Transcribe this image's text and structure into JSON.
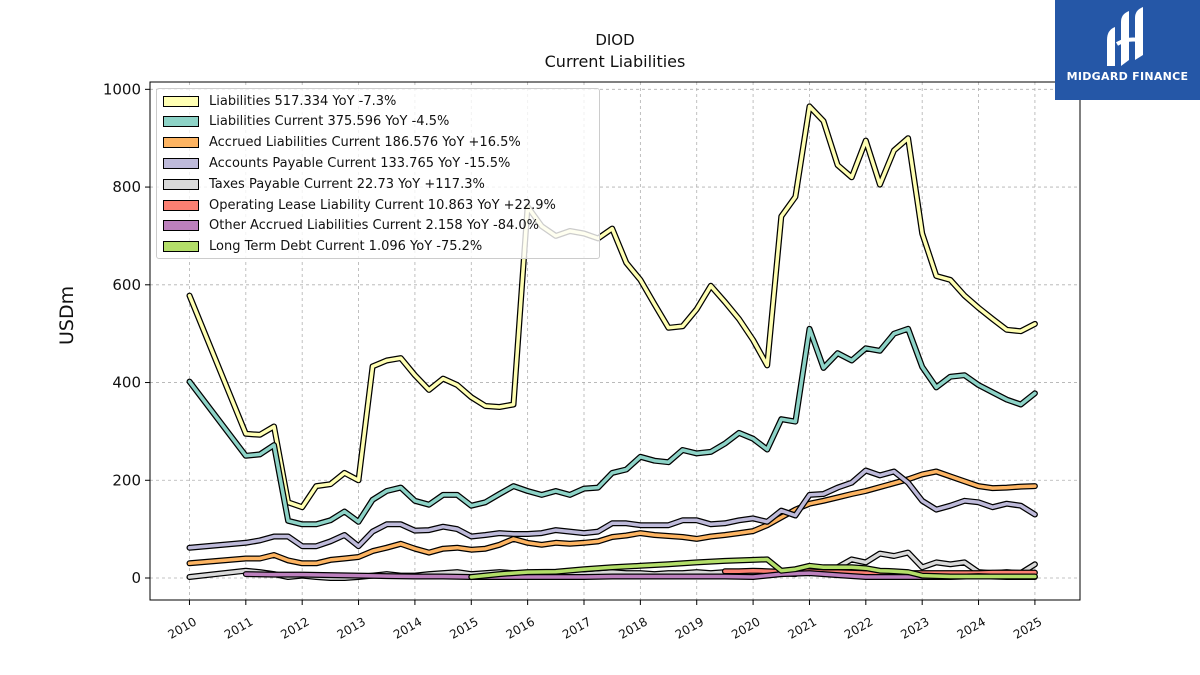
{
  "header": {
    "ticker": "DIOD",
    "subtitle": "Current  Liabilities"
  },
  "brand": {
    "name": "MIDGARD FINANCE",
    "color": "#2557a7"
  },
  "chart_data": {
    "type": "line",
    "ylabel": "USDm",
    "xlabel": "",
    "ylim": [
      -45,
      1015
    ],
    "xlim": [
      2009.3,
      2025.8
    ],
    "yticks": [
      0,
      200,
      400,
      600,
      800,
      1000
    ],
    "xticks": [
      "2010",
      "2011",
      "2012",
      "2013",
      "2014",
      "2015",
      "2016",
      "2017",
      "2018",
      "2019",
      "2020",
      "2021",
      "2022",
      "2023",
      "2024",
      "2025"
    ],
    "grid": true,
    "legend_position": "top-left",
    "series": [
      {
        "name": "Liabilities",
        "legend": "Liabilities  517.334 YoY -7.3%",
        "color": "#ffffb3",
        "x": [
          2010,
          2011,
          2011.25,
          2011.5,
          2011.75,
          2012,
          2012.25,
          2012.5,
          2012.75,
          2013,
          2013.25,
          2013.5,
          2013.75,
          2014,
          2014.25,
          2014.5,
          2014.75,
          2015,
          2015.25,
          2015.5,
          2015.75,
          2016,
          2016.25,
          2016.5,
          2016.75,
          2017,
          2017.25,
          2017.5,
          2017.75,
          2018,
          2018.25,
          2018.5,
          2018.75,
          2019,
          2019.25,
          2019.5,
          2019.75,
          2020,
          2020.25,
          2020.5,
          2020.75,
          2021,
          2021.25,
          2021.5,
          2021.75,
          2022,
          2022.25,
          2022.5,
          2022.75,
          2023,
          2023.25,
          2023.5,
          2023.75,
          2024,
          2024.25,
          2024.5,
          2024.75,
          2025
        ],
        "y": [
          578,
          295,
          293,
          310,
          155,
          145,
          188,
          192,
          215,
          200,
          433,
          445,
          450,
          415,
          385,
          408,
          395,
          370,
          352,
          350,
          355,
          760,
          720,
          700,
          710,
          705,
          695,
          715,
          645,
          610,
          560,
          512,
          515,
          550,
          598,
          565,
          530,
          487,
          435,
          740,
          780,
          965,
          935,
          845,
          820,
          895,
          805,
          875,
          900,
          705,
          618,
          610,
          578,
          553,
          530,
          508,
          505,
          520
        ]
      },
      {
        "name": "Liabilities Current",
        "legend": "Liabilities Current  375.596 YoY -4.5%",
        "color": "#8dd3c7",
        "x": [
          2010,
          2011,
          2011.25,
          2011.5,
          2011.75,
          2012,
          2012.25,
          2012.5,
          2012.75,
          2013,
          2013.25,
          2013.5,
          2013.75,
          2014,
          2014.25,
          2014.5,
          2014.75,
          2015,
          2015.25,
          2015.5,
          2015.75,
          2016,
          2016.25,
          2016.5,
          2016.75,
          2017,
          2017.25,
          2017.5,
          2017.75,
          2018,
          2018.25,
          2018.5,
          2018.75,
          2019,
          2019.25,
          2019.5,
          2019.75,
          2020,
          2020.25,
          2020.5,
          2020.75,
          2021,
          2021.25,
          2021.5,
          2021.75,
          2022,
          2022.25,
          2022.5,
          2022.75,
          2023,
          2023.25,
          2023.5,
          2023.75,
          2024,
          2024.25,
          2024.5,
          2024.75,
          2025
        ],
        "y": [
          402,
          250,
          253,
          272,
          117,
          110,
          110,
          118,
          136,
          115,
          160,
          178,
          185,
          158,
          150,
          170,
          170,
          148,
          155,
          172,
          188,
          178,
          170,
          178,
          170,
          183,
          185,
          215,
          222,
          248,
          240,
          237,
          262,
          255,
          258,
          275,
          297,
          285,
          263,
          325,
          320,
          510,
          430,
          460,
          445,
          470,
          465,
          500,
          510,
          432,
          390,
          412,
          415,
          395,
          380,
          365,
          355,
          378
        ]
      },
      {
        "name": "Accrued Liabilities Current",
        "legend": "Accrued Liabilities Current  186.576 YoY +16.5%",
        "color": "#fdb462",
        "x": [
          2010,
          2011,
          2011.25,
          2011.5,
          2011.75,
          2012,
          2012.25,
          2012.5,
          2012.75,
          2013,
          2013.25,
          2013.5,
          2013.75,
          2014,
          2014.25,
          2014.5,
          2014.75,
          2015,
          2015.25,
          2015.5,
          2015.75,
          2016,
          2016.25,
          2016.5,
          2016.75,
          2017,
          2017.25,
          2017.5,
          2017.75,
          2018,
          2018.25,
          2018.5,
          2018.75,
          2019,
          2019.25,
          2019.5,
          2019.75,
          2020,
          2020.25,
          2020.5,
          2020.75,
          2021,
          2021.25,
          2021.5,
          2021.75,
          2022,
          2022.25,
          2022.5,
          2022.75,
          2023,
          2023.25,
          2023.5,
          2023.75,
          2024,
          2024.25,
          2024.5,
          2024.75,
          2025
        ],
        "y": [
          30,
          40,
          40,
          47,
          36,
          30,
          30,
          37,
          40,
          43,
          55,
          62,
          70,
          60,
          52,
          60,
          62,
          58,
          60,
          68,
          80,
          72,
          68,
          72,
          70,
          72,
          75,
          84,
          87,
          92,
          88,
          86,
          84,
          80,
          85,
          88,
          92,
          96,
          108,
          124,
          140,
          152,
          158,
          165,
          172,
          178,
          186,
          194,
          202,
          212,
          218,
          208,
          198,
          188,
          184,
          185,
          187,
          188
        ]
      },
      {
        "name": "Accounts Payable Current",
        "legend": "Accounts Payable Current  133.765 YoY -15.5%",
        "color": "#bebada",
        "x": [
          2010,
          2011,
          2011.25,
          2011.5,
          2011.75,
          2012,
          2012.25,
          2012.5,
          2012.75,
          2013,
          2013.25,
          2013.5,
          2013.75,
          2014,
          2014.25,
          2014.5,
          2014.75,
          2015,
          2015.25,
          2015.5,
          2015.75,
          2016,
          2016.25,
          2016.5,
          2016.75,
          2017,
          2017.25,
          2017.5,
          2017.75,
          2018,
          2018.25,
          2018.5,
          2018.75,
          2019,
          2019.25,
          2019.5,
          2019.75,
          2020,
          2020.25,
          2020.5,
          2020.75,
          2021,
          2021.25,
          2021.5,
          2021.75,
          2022,
          2022.25,
          2022.5,
          2022.75,
          2023,
          2023.25,
          2023.5,
          2023.75,
          2024,
          2024.25,
          2024.5,
          2024.75,
          2025
        ],
        "y": [
          62,
          72,
          77,
          85,
          85,
          65,
          65,
          75,
          88,
          65,
          95,
          110,
          110,
          97,
          98,
          105,
          100,
          85,
          88,
          92,
          90,
          90,
          92,
          98,
          95,
          92,
          95,
          112,
          112,
          108,
          108,
          108,
          118,
          118,
          110,
          112,
          118,
          122,
          115,
          138,
          128,
          170,
          172,
          185,
          195,
          220,
          210,
          218,
          195,
          158,
          140,
          148,
          158,
          155,
          145,
          152,
          148,
          130
        ]
      },
      {
        "name": "Taxes Payable Current",
        "legend": "Taxes Payable Current  22.73 YoY +117.3%",
        "color": "#d9d9d9",
        "x": [
          2010,
          2011,
          2011.25,
          2011.5,
          2011.75,
          2012,
          2012.25,
          2012.5,
          2012.75,
          2013,
          2013.25,
          2013.5,
          2013.75,
          2014,
          2014.25,
          2014.5,
          2014.75,
          2015,
          2015.25,
          2015.5,
          2015.75,
          2016,
          2016.25,
          2016.5,
          2016.75,
          2017,
          2017.25,
          2017.5,
          2017.75,
          2018,
          2018.25,
          2018.5,
          2018.75,
          2019,
          2019.25,
          2019.5,
          2019.75,
          2020,
          2020.25,
          2020.5,
          2020.75,
          2021,
          2021.25,
          2021.5,
          2021.75,
          2022,
          2022.25,
          2022.5,
          2022.75,
          2023,
          2023.25,
          2023.5,
          2023.75,
          2024,
          2024.25,
          2024.5,
          2024.75,
          2025
        ],
        "y": [
          2,
          15,
          12,
          8,
          2,
          5,
          2,
          0,
          0,
          2,
          5,
          8,
          5,
          5,
          8,
          10,
          12,
          8,
          10,
          12,
          10,
          10,
          12,
          12,
          10,
          8,
          10,
          12,
          10,
          10,
          8,
          10,
          10,
          12,
          10,
          12,
          10,
          10,
          12,
          10,
          8,
          18,
          15,
          22,
          38,
          32,
          50,
          45,
          52,
          22,
          32,
          28,
          32,
          12,
          10,
          12,
          10,
          28
        ]
      },
      {
        "name": "Operating Lease Liability Current",
        "legend": "Operating Lease Liability Current  10.863 YoY +22.9%",
        "color": "#fb8072",
        "x": [
          2019.5,
          2019.75,
          2020,
          2020.25,
          2020.5,
          2020.75,
          2021,
          2021.25,
          2021.5,
          2021.75,
          2022,
          2022.25,
          2022.5,
          2022.75,
          2023,
          2023.25,
          2023.5,
          2023.75,
          2024,
          2024.25,
          2024.5,
          2024.75,
          2025
        ],
        "y": [
          14,
          14,
          15,
          14,
          13,
          14,
          14,
          12,
          12,
          11,
          10,
          10,
          10,
          10,
          10,
          10,
          10,
          10,
          10,
          11,
          11,
          11,
          11
        ]
      },
      {
        "name": "Other Accrued Liabilities Current",
        "legend": "Other Accrued Liabilities Current  2.158 YoY -84.0%",
        "color": "#bc80bd",
        "x": [
          2011,
          2011.5,
          2012,
          2012.5,
          2013,
          2013.5,
          2014,
          2014.5,
          2015,
          2015.5,
          2016,
          2016.5,
          2017,
          2017.5,
          2018,
          2018.5,
          2019,
          2019.5,
          2020,
          2020.5,
          2021,
          2021.5,
          2022,
          2022.5,
          2023,
          2023.5,
          2024,
          2024.5,
          2025
        ],
        "y": [
          8,
          7,
          7,
          6,
          5,
          4,
          3,
          3,
          2,
          2,
          2,
          2,
          2,
          3,
          3,
          3,
          3,
          3,
          2,
          8,
          10,
          6,
          2,
          2,
          2,
          2,
          4,
          2,
          2
        ]
      },
      {
        "name": "Long Term Debt Current",
        "legend": "Long Term Debt Current  1.096 YoY -75.2%",
        "color": "#b3de69",
        "x": [
          2015,
          2015.5,
          2016,
          2016.5,
          2017,
          2017.5,
          2018,
          2018.5,
          2019,
          2019.5,
          2020,
          2020.25,
          2020.5,
          2020.75,
          2021,
          2021.25,
          2021.5,
          2021.75,
          2022,
          2022.25,
          2022.5,
          2022.75,
          2023,
          2023.5,
          2024,
          2024.5,
          2025
        ],
        "y": [
          2,
          8,
          12,
          13,
          18,
          22,
          25,
          28,
          32,
          35,
          37,
          38,
          15,
          18,
          25,
          22,
          22,
          22,
          20,
          15,
          14,
          12,
          5,
          3,
          3,
          3,
          3
        ]
      }
    ]
  }
}
